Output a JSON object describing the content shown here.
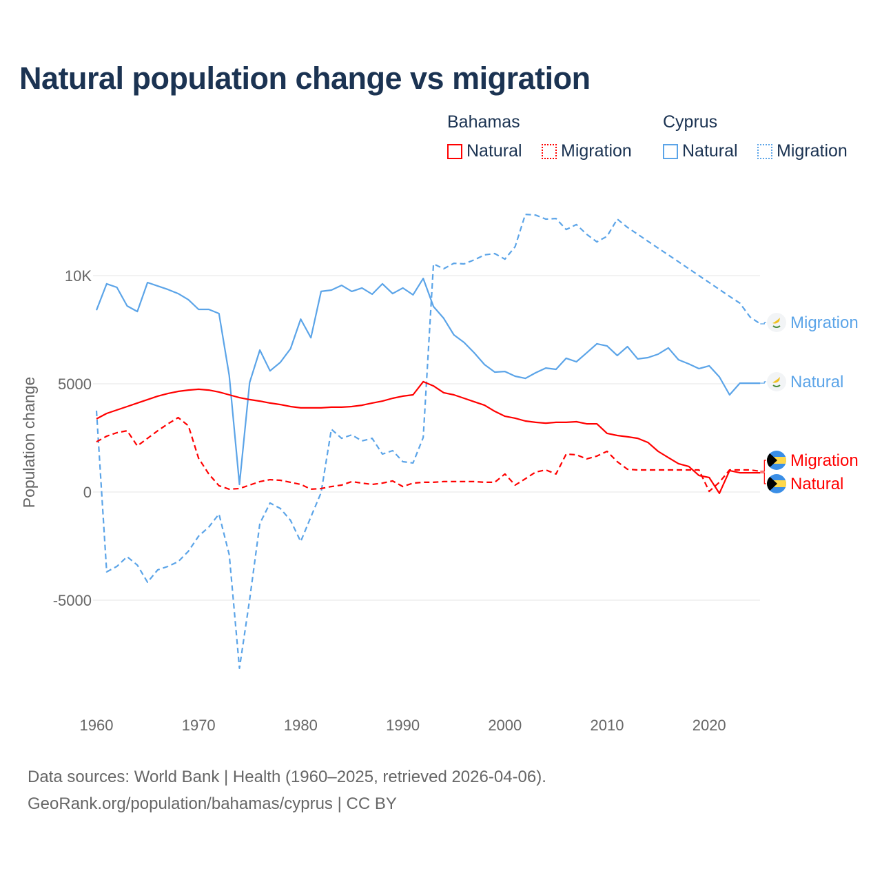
{
  "title": "Natural population change vs migration",
  "legend": {
    "groups": [
      {
        "name": "Bahamas",
        "color": "#ff0000",
        "items": [
          {
            "label": "Natural",
            "style": "solid"
          },
          {
            "label": "Migration",
            "style": "dotted"
          }
        ]
      },
      {
        "name": "Cyprus",
        "color": "#5ba4e8",
        "items": [
          {
            "label": "Natural",
            "style": "solid"
          },
          {
            "label": "Migration",
            "style": "dotted"
          }
        ]
      }
    ]
  },
  "footer": {
    "line1": "Data sources: World Bank | Health (1960–2025, retrieved 2026-04-06).",
    "line2": "GeoRank.org/population/bahamas/cyprus | CC BY"
  },
  "chart_data": {
    "type": "line",
    "title": "Natural population change vs migration",
    "xlabel": "",
    "ylabel": "Population change",
    "xlim": [
      1960,
      2025
    ],
    "ylim": [
      -9000,
      13000
    ],
    "x_ticks": [
      1960,
      1970,
      1980,
      1990,
      2000,
      2010,
      2020
    ],
    "x_tick_labels": [
      "1960",
      "1970",
      "1980",
      "1990",
      "2000",
      "2010",
      "2020"
    ],
    "y_ticks": [
      -5000,
      0,
      5000,
      10000
    ],
    "y_tick_labels": [
      "-5000",
      "0",
      "5000",
      "10K"
    ],
    "grid": true,
    "legend_position": "top-right",
    "x_start": 1960,
    "series": [
      {
        "name": "Cyprus Migration",
        "country": "Cyprus",
        "label": "Migration",
        "flag": "cyprus-flag",
        "color": "#5ba4e8",
        "dash": "dashed",
        "values": [
          3760,
          -3690,
          -3440,
          -2990,
          -3380,
          -4170,
          -3600,
          -3440,
          -3220,
          -2740,
          -2040,
          -1620,
          -1020,
          -2900,
          -8150,
          -4970,
          -1460,
          -510,
          -760,
          -1310,
          -2290,
          -1150,
          -30,
          2900,
          2480,
          2640,
          2360,
          2480,
          1750,
          1910,
          1400,
          1340,
          2520,
          10540,
          10320,
          10570,
          10540,
          10730,
          10960,
          11020,
          10760,
          11340,
          12830,
          12800,
          12610,
          12640,
          12130,
          12360,
          11910,
          11560,
          11820,
          12610,
          12230,
          11910,
          11590,
          11270,
          10960,
          10640,
          10320,
          10000,
          9680,
          9360,
          9040,
          8730,
          8090,
          7770
        ]
      },
      {
        "name": "Cyprus Natural",
        "country": "Cyprus",
        "label": "Natural",
        "flag": "cyprus-flag",
        "color": "#5ba4e8",
        "dash": "solid",
        "values": [
          8400,
          9620,
          9460,
          8600,
          8340,
          9680,
          9520,
          9360,
          9170,
          8890,
          8440,
          8440,
          8250,
          5380,
          350,
          5060,
          6560,
          5600,
          5990,
          6620,
          7990,
          7130,
          9270,
          9330,
          9550,
          9270,
          9430,
          9140,
          9620,
          9170,
          9430,
          9110,
          9870,
          8570,
          8030,
          7260,
          6910,
          6430,
          5890,
          5540,
          5570,
          5350,
          5250,
          5510,
          5730,
          5670,
          6180,
          6020,
          6430,
          6850,
          6750,
          6310,
          6720,
          6150,
          6210,
          6370,
          6660,
          6110,
          5920,
          5700,
          5830,
          5320,
          4490,
          5030,
          5030,
          5030
        ]
      },
      {
        "name": "Bahamas Migration",
        "country": "Bahamas",
        "label": "Migration",
        "flag": "bahamas-flag",
        "color": "#ff0000",
        "dash": "dashed",
        "values": [
          2320,
          2580,
          2740,
          2830,
          2130,
          2480,
          2830,
          3150,
          3440,
          3060,
          1560,
          830,
          290,
          130,
          160,
          320,
          480,
          570,
          540,
          450,
          350,
          130,
          160,
          250,
          320,
          480,
          410,
          350,
          410,
          510,
          250,
          410,
          450,
          450,
          480,
          480,
          480,
          480,
          450,
          450,
          830,
          320,
          610,
          920,
          1020,
          830,
          1750,
          1720,
          1530,
          1660,
          1880,
          1400,
          1050,
          1020,
          1020,
          1020,
          1020,
          1020,
          1020,
          1020,
          30,
          450,
          1020,
          1020,
          1020,
          960
        ]
      },
      {
        "name": "Bahamas Natural",
        "country": "Bahamas",
        "label": "Natural",
        "flag": "bahamas-flag",
        "color": "#ff0000",
        "dash": "solid",
        "values": [
          3380,
          3630,
          3790,
          3950,
          4110,
          4270,
          4430,
          4550,
          4650,
          4710,
          4750,
          4710,
          4620,
          4490,
          4360,
          4270,
          4200,
          4110,
          4040,
          3950,
          3890,
          3890,
          3890,
          3920,
          3920,
          3950,
          4010,
          4110,
          4200,
          4330,
          4430,
          4490,
          5100,
          4900,
          4590,
          4490,
          4330,
          4170,
          4010,
          3730,
          3500,
          3410,
          3280,
          3220,
          3180,
          3220,
          3220,
          3250,
          3150,
          3150,
          2710,
          2610,
          2550,
          2480,
          2290,
          1880,
          1590,
          1310,
          1180,
          760,
          670,
          -60,
          990,
          890,
          890,
          890
        ]
      }
    ]
  }
}
